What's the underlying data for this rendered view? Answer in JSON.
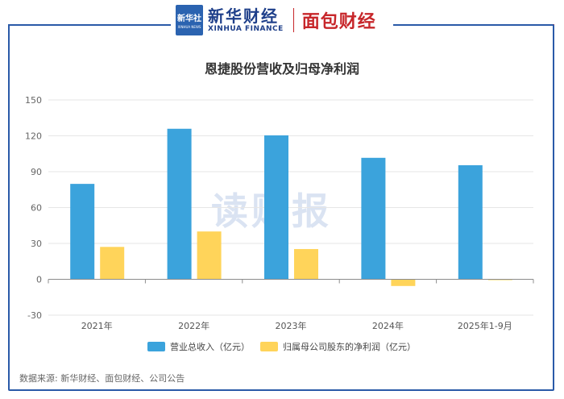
{
  "header": {
    "xinhua_mark": "新华社",
    "xinhua_mark_en": "XINHUA NEWS",
    "xinhua_name": "新华财经",
    "xinhua_name_en": "XINHUA FINANCE",
    "partner_name": "面包财经"
  },
  "watermark": "读财报",
  "source": "数据来源: 新华财经、面包财经、公司公告",
  "colors": {
    "revenue": "#3ba3dc",
    "profit": "#ffd45a",
    "frame_left": "#2a5aa8",
    "frame_right": "#c7262a"
  },
  "chart_data": {
    "type": "bar",
    "title": "恩捷股份营收及归母净利润",
    "categories": [
      "2021年",
      "2022年",
      "2023年",
      "2024年",
      "2025年1-9月"
    ],
    "series": [
      {
        "name": "营业总收入（亿元）",
        "values": [
          79.8,
          125.9,
          120.4,
          101.6,
          95.4
        ]
      },
      {
        "name": "归属母公司股东的净利润（亿元）",
        "values": [
          27.1,
          40.0,
          25.3,
          -5.6,
          -0.7
        ]
      }
    ],
    "yticks": [
      150,
      120,
      90,
      60,
      30,
      0,
      -30
    ],
    "ylim": [
      -30,
      150
    ],
    "grid": true,
    "legend_position": "bottom"
  }
}
